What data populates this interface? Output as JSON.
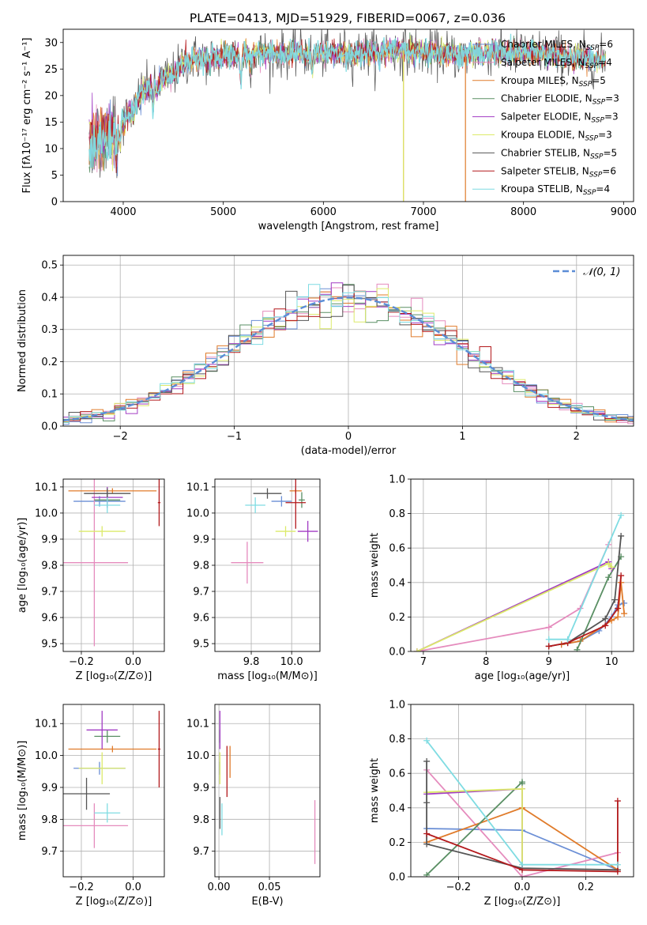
{
  "figure": {
    "title": "PLATE=0413, MJD=51929, FIBERID=0067, z=0.036"
  },
  "colors": {
    "Chabrier MILES": "#6b8fd6",
    "Salpeter MILES": "#e58bbd",
    "Kroupa MILES": "#e07b2a",
    "Chabrier ELODIE": "#5a8f64",
    "Salpeter ELODIE": "#a23cc4",
    "Kroupa ELODIE": "#dcea6a",
    "Chabrier STELIB": "#555555",
    "Salpeter STELIB": "#b3191c",
    "Kroupa STELIB": "#7fdce2",
    "normal_curve": "#5b8dd6"
  },
  "chart_data": [
    {
      "id": "spectrum",
      "type": "line",
      "xlabel": "wavelength [Angstrom, rest frame]",
      "ylabel": "Flux [fλ10⁻¹⁷ erg cm⁻² s⁻¹ A⁻¹]",
      "xlim": [
        3400,
        9100
      ],
      "ylim": [
        0,
        32.5
      ],
      "xticks": [
        4000,
        5000,
        6000,
        7000,
        8000,
        9000
      ],
      "yticks": [
        0,
        5,
        10,
        15,
        20,
        25,
        30
      ],
      "grid": false,
      "legend_position": "right",
      "legend": [
        {
          "base": "Chabrier MILES",
          "nssp": "6"
        },
        {
          "base": "Salpeter MILES",
          "nssp": "4"
        },
        {
          "base": "Kroupa MILES",
          "nssp": "5"
        },
        {
          "base": "Chabrier ELODIE",
          "nssp": "3"
        },
        {
          "base": "Salpeter ELODIE",
          "nssp": "3"
        },
        {
          "base": "Kroupa ELODIE",
          "nssp": "3"
        },
        {
          "base": "Chabrier STELIB",
          "nssp": "5"
        },
        {
          "base": "Salpeter STELIB",
          "nssp": "6"
        },
        {
          "base": "Kroupa STELIB",
          "nssp": "4"
        }
      ],
      "continuum": [
        [
          3660,
          11
        ],
        [
          3800,
          12
        ],
        [
          3900,
          13
        ],
        [
          4000,
          15
        ],
        [
          4100,
          18
        ],
        [
          4200,
          21
        ],
        [
          4300,
          22
        ],
        [
          4400,
          23
        ],
        [
          4500,
          24
        ],
        [
          4600,
          26
        ],
        [
          4700,
          27
        ],
        [
          4800,
          27
        ],
        [
          4900,
          27
        ],
        [
          5000,
          27.5
        ],
        [
          5200,
          28
        ],
        [
          5400,
          28
        ],
        [
          5600,
          28
        ],
        [
          5800,
          28
        ],
        [
          6000,
          28
        ],
        [
          6200,
          28
        ],
        [
          6400,
          28
        ],
        [
          6600,
          28.5
        ],
        [
          6800,
          28.5
        ],
        [
          7000,
          28
        ],
        [
          7200,
          28
        ],
        [
          7400,
          27.5
        ],
        [
          7600,
          28.5
        ],
        [
          7800,
          28
        ],
        [
          8000,
          28
        ],
        [
          8200,
          28
        ],
        [
          8400,
          27.5
        ],
        [
          8600,
          27
        ],
        [
          8800,
          26.5
        ]
      ],
      "absorption": [
        [
          3934,
          4
        ],
        [
          3968,
          3
        ],
        [
          4102,
          2
        ],
        [
          4300,
          4
        ],
        [
          4340,
          2
        ],
        [
          4861,
          2
        ],
        [
          5175,
          5
        ],
        [
          5270,
          2
        ],
        [
          5890,
          3
        ],
        [
          6563,
          2
        ],
        [
          7600,
          2
        ],
        [
          8500,
          2
        ]
      ],
      "spikes": [
        {
          "series": "Kroupa MILES",
          "x": 6800,
          "ymin": 0
        },
        {
          "series": "Kroupa MILES",
          "x": 7420,
          "ymin": 0
        },
        {
          "series": "Kroupa ELODIE",
          "x": 6800,
          "ymin": 0
        }
      ]
    },
    {
      "id": "residuals",
      "type": "histogram",
      "xlabel": "(data-model)/error",
      "ylabel": "Normed distribution",
      "xlim": [
        -2.5,
        2.5
      ],
      "ylim": [
        0,
        0.53
      ],
      "xticks": [
        -2,
        -1,
        0,
        1,
        2
      ],
      "yticks": [
        0.0,
        0.1,
        0.2,
        0.3,
        0.4,
        0.5
      ],
      "grid": true,
      "bin_width": 0.1,
      "legend": [
        "𝒩(0, 1)"
      ],
      "legend_position": "top-right"
    },
    {
      "id": "age_vs_Z",
      "type": "errorbar",
      "xlabel": "Z [log₁₀(Z/Z⊙)]",
      "ylabel": "age  [log₁₀(age/yr)]",
      "xlim": [
        -0.27,
        0.12
      ],
      "ylim": [
        9.47,
        10.13
      ],
      "xticks": [
        -0.2,
        0.0
      ],
      "yticks": [
        9.5,
        9.6,
        9.7,
        9.8,
        9.9,
        10.0,
        10.1
      ],
      "grid": true,
      "points": [
        {
          "series": "Chabrier MILES",
          "x": -0.13,
          "y": 10.045,
          "xerr": 0.1,
          "yerr": 0.02
        },
        {
          "series": "Salpeter MILES",
          "x": -0.15,
          "y": 9.81,
          "xerr": 0.13,
          "yerr": 0.32
        },
        {
          "series": "Kroupa MILES",
          "x": -0.08,
          "y": 10.085,
          "xerr": 0.17,
          "yerr": 0.01
        },
        {
          "series": "Chabrier ELODIE",
          "x": -0.1,
          "y": 10.05,
          "xerr": 0.05,
          "yerr": 0.03
        },
        {
          "series": "Salpeter ELODIE",
          "x": -0.1,
          "y": 10.06,
          "xerr": 0.06,
          "yerr": 0.04
        },
        {
          "series": "Kroupa ELODIE",
          "x": -0.12,
          "y": 9.93,
          "xerr": 0.09,
          "yerr": 0.02
        },
        {
          "series": "Chabrier STELIB",
          "x": -0.1,
          "y": 10.075,
          "xerr": 0.09,
          "yerr": 0.02
        },
        {
          "series": "Salpeter STELIB",
          "x": 0.1,
          "y": 10.04,
          "xerr": 0.005,
          "yerr": 0.09
        },
        {
          "series": "Kroupa STELIB",
          "x": -0.1,
          "y": 10.03,
          "xerr": 0.05,
          "yerr": 0.03
        }
      ]
    },
    {
      "id": "age_vs_mass",
      "type": "errorbar",
      "xlabel": "mass [log₁₀(M/M⊙)]",
      "ylabel": "",
      "xlim": [
        9.62,
        10.14
      ],
      "ylim": [
        9.47,
        10.13
      ],
      "xticks": [
        9.8,
        10.0
      ],
      "yticks": [
        9.5,
        9.6,
        9.7,
        9.8,
        9.9,
        10.0,
        10.1
      ],
      "grid": true,
      "points": [
        {
          "series": "Chabrier MILES",
          "x": 9.95,
          "y": 10.045,
          "xerr": 0.05,
          "yerr": 0.02
        },
        {
          "series": "Salpeter MILES",
          "x": 9.78,
          "y": 9.81,
          "xerr": 0.08,
          "yerr": 0.08
        },
        {
          "series": "Kroupa MILES",
          "x": 10.02,
          "y": 10.085,
          "xerr": 0.03,
          "yerr": 0.01
        },
        {
          "series": "Chabrier ELODIE",
          "x": 10.05,
          "y": 10.05,
          "xerr": 0.015,
          "yerr": 0.03
        },
        {
          "series": "Salpeter ELODIE",
          "x": 10.08,
          "y": 9.93,
          "xerr": 0.05,
          "yerr": 0.04
        },
        {
          "series": "Kroupa ELODIE",
          "x": 9.97,
          "y": 9.93,
          "xerr": 0.05,
          "yerr": 0.02
        },
        {
          "series": "Chabrier STELIB",
          "x": 9.88,
          "y": 10.075,
          "xerr": 0.07,
          "yerr": 0.02
        },
        {
          "series": "Salpeter STELIB",
          "x": 10.02,
          "y": 10.04,
          "xerr": 0.05,
          "yerr": 0.1
        },
        {
          "series": "Kroupa STELIB",
          "x": 9.82,
          "y": 10.03,
          "xerr": 0.05,
          "yerr": 0.03
        }
      ]
    },
    {
      "id": "weight_vs_age",
      "type": "line",
      "xlabel": "age  [log₁₀(age/yr)]",
      "ylabel": "mass weight",
      "xlim": [
        6.8,
        10.35
      ],
      "ylim": [
        0,
        1.0
      ],
      "xticks": [
        7,
        8,
        9,
        10
      ],
      "yticks": [
        0.0,
        0.2,
        0.4,
        0.6,
        0.8,
        1.0
      ],
      "grid": true,
      "series": [
        {
          "name": "Chabrier MILES",
          "x": [
            9.2,
            9.5,
            9.8,
            10.0,
            10.1,
            10.2
          ],
          "y": [
            0.04,
            0.06,
            0.12,
            0.2,
            0.27,
            0.28
          ]
        },
        {
          "name": "Salpeter MILES",
          "x": [
            6.9,
            9.0,
            9.5,
            9.95
          ],
          "y": [
            0.0,
            0.14,
            0.25,
            0.62
          ]
        },
        {
          "name": "Kroupa MILES",
          "x": [
            9.2,
            9.5,
            10.0,
            10.1,
            10.15,
            10.2
          ],
          "y": [
            0.04,
            0.06,
            0.18,
            0.2,
            0.4,
            0.22
          ]
        },
        {
          "name": "Chabrier ELODIE",
          "x": [
            9.45,
            9.95,
            10.15
          ],
          "y": [
            0.01,
            0.43,
            0.55
          ]
        },
        {
          "name": "Salpeter ELODIE",
          "x": [
            6.9,
            9.95,
            10.0
          ],
          "y": [
            0.0,
            0.52,
            0.48
          ]
        },
        {
          "name": "Kroupa ELODIE",
          "x": [
            6.9,
            9.95,
            10.0
          ],
          "y": [
            0.0,
            0.51,
            0.49
          ]
        },
        {
          "name": "Chabrier STELIB",
          "x": [
            9.0,
            9.3,
            9.9,
            10.05,
            10.15
          ],
          "y": [
            0.03,
            0.05,
            0.19,
            0.3,
            0.67
          ]
        },
        {
          "name": "Salpeter STELIB",
          "x": [
            9.0,
            9.3,
            9.9,
            10.1,
            10.15
          ],
          "y": [
            0.03,
            0.05,
            0.15,
            0.25,
            0.44
          ]
        },
        {
          "name": "Kroupa STELIB",
          "x": [
            9.0,
            9.3,
            10.15
          ],
          "y": [
            0.07,
            0.07,
            0.79
          ]
        }
      ]
    },
    {
      "id": "mass_vs_Z",
      "type": "errorbar",
      "xlabel": "Z [log₁₀(Z/Z⊙)]",
      "ylabel": "mass [log₁₀(M/M⊙)]",
      "xlim": [
        -0.27,
        0.12
      ],
      "ylim": [
        9.62,
        10.16
      ],
      "xticks": [
        -0.2,
        0.0
      ],
      "yticks": [
        9.7,
        9.8,
        9.9,
        10.0,
        10.1
      ],
      "grid": true,
      "points": [
        {
          "series": "Chabrier MILES",
          "x": -0.13,
          "y": 9.96,
          "xerr": 0.1,
          "yerr": 0.02
        },
        {
          "series": "Salpeter MILES",
          "x": -0.15,
          "y": 9.78,
          "xerr": 0.13,
          "yerr": 0.07
        },
        {
          "series": "Kroupa MILES",
          "x": -0.08,
          "y": 10.02,
          "xerr": 0.17,
          "yerr": 0.01
        },
        {
          "series": "Chabrier ELODIE",
          "x": -0.1,
          "y": 10.06,
          "xerr": 0.05,
          "yerr": 0.02
        },
        {
          "series": "Salpeter ELODIE",
          "x": -0.12,
          "y": 10.08,
          "xerr": 0.06,
          "yerr": 0.06
        },
        {
          "series": "Kroupa ELODIE",
          "x": -0.12,
          "y": 9.96,
          "xerr": 0.09,
          "yerr": 0.05
        },
        {
          "series": "Chabrier STELIB",
          "x": -0.18,
          "y": 9.88,
          "xerr": 0.09,
          "yerr": 0.05
        },
        {
          "series": "Salpeter STELIB",
          "x": 0.1,
          "y": 10.02,
          "xerr": 0.005,
          "yerr": 0.12
        },
        {
          "series": "Kroupa STELIB",
          "x": -0.1,
          "y": 9.82,
          "xerr": 0.05,
          "yerr": 0.03
        }
      ]
    },
    {
      "id": "mass_vs_ebv",
      "type": "errorbar",
      "xlabel": "E(B-V)",
      "ylabel": "",
      "xlim": [
        -0.004,
        0.1
      ],
      "ylim": [
        9.62,
        10.16
      ],
      "xticks": [
        0.0,
        0.05
      ],
      "yticks": [
        9.7,
        9.8,
        9.9,
        10.0,
        10.1
      ],
      "grid": true,
      "points": [
        {
          "series": "Chabrier MILES",
          "x": 0.001,
          "y": 9.96,
          "xerr": 0,
          "yerr": 0.02
        },
        {
          "series": "Salpeter MILES",
          "x": 0.095,
          "y": 9.76,
          "xerr": 0,
          "yerr": 0.1
        },
        {
          "series": "Kroupa MILES",
          "x": 0.011,
          "y": 9.98,
          "xerr": 0,
          "yerr": 0.05
        },
        {
          "series": "Chabrier ELODIE",
          "x": 0.001,
          "y": 10.06,
          "xerr": 0,
          "yerr": 0.02
        },
        {
          "series": "Salpeter ELODIE",
          "x": 0.001,
          "y": 10.08,
          "xerr": 0,
          "yerr": 0.06
        },
        {
          "series": "Kroupa ELODIE",
          "x": 0.001,
          "y": 9.96,
          "xerr": 0,
          "yerr": 0.05
        },
        {
          "series": "Chabrier STELIB",
          "x": 0.001,
          "y": 9.82,
          "xerr": 0,
          "yerr": 0.05
        },
        {
          "series": "Salpeter STELIB",
          "x": 0.008,
          "y": 9.95,
          "xerr": 0,
          "yerr": 0.08
        },
        {
          "series": "Kroupa STELIB",
          "x": 0.003,
          "y": 9.8,
          "xerr": 0,
          "yerr": 0.05
        }
      ]
    },
    {
      "id": "weight_vs_Z",
      "type": "line",
      "xlabel": "Z [log₁₀(Z/Z⊙)]",
      "ylabel": "mass weight",
      "xlim": [
        -0.35,
        0.35
      ],
      "ylim": [
        0,
        1.0
      ],
      "xticks": [
        -0.2,
        0.0,
        0.2
      ],
      "yticks": [
        0.0,
        0.2,
        0.4,
        0.6,
        0.8,
        1.0
      ],
      "grid": true,
      "series": [
        {
          "name": "Chabrier MILES",
          "x": [
            -0.3,
            0.0,
            0.3
          ],
          "y": [
            0.28,
            0.27,
            0.04
          ]
        },
        {
          "name": "Salpeter MILES",
          "x": [
            -0.3,
            0.0,
            0.3
          ],
          "y": [
            0.62,
            0.0,
            0.14
          ]
        },
        {
          "name": "Kroupa MILES",
          "x": [
            -0.3,
            0.0,
            0.3
          ],
          "y": [
            0.2,
            0.4,
            0.04
          ]
        },
        {
          "name": "Chabrier ELODIE",
          "x": [
            -0.3,
            0.0,
            0.0
          ],
          "y": [
            0.01,
            0.55,
            0.54
          ]
        },
        {
          "name": "Salpeter ELODIE",
          "x": [
            -0.3,
            0.0,
            0.0
          ],
          "y": [
            0.48,
            0.51,
            0.05
          ]
        },
        {
          "name": "Kroupa ELODIE",
          "x": [
            -0.3,
            0.0,
            0.0
          ],
          "y": [
            0.49,
            0.51,
            0.07
          ]
        },
        {
          "name": "Chabrier STELIB",
          "x": [
            -0.3,
            -0.3,
            -0.3,
            0.0,
            0.3
          ],
          "y": [
            0.67,
            0.43,
            0.19,
            0.05,
            0.04
          ]
        },
        {
          "name": "Salpeter STELIB",
          "x": [
            -0.3,
            0.0,
            0.3,
            0.3
          ],
          "y": [
            0.25,
            0.04,
            0.03,
            0.44
          ]
        },
        {
          "name": "Kroupa STELIB",
          "x": [
            -0.3,
            0.0,
            0.3
          ],
          "y": [
            0.79,
            0.07,
            0.07
          ]
        }
      ]
    }
  ]
}
